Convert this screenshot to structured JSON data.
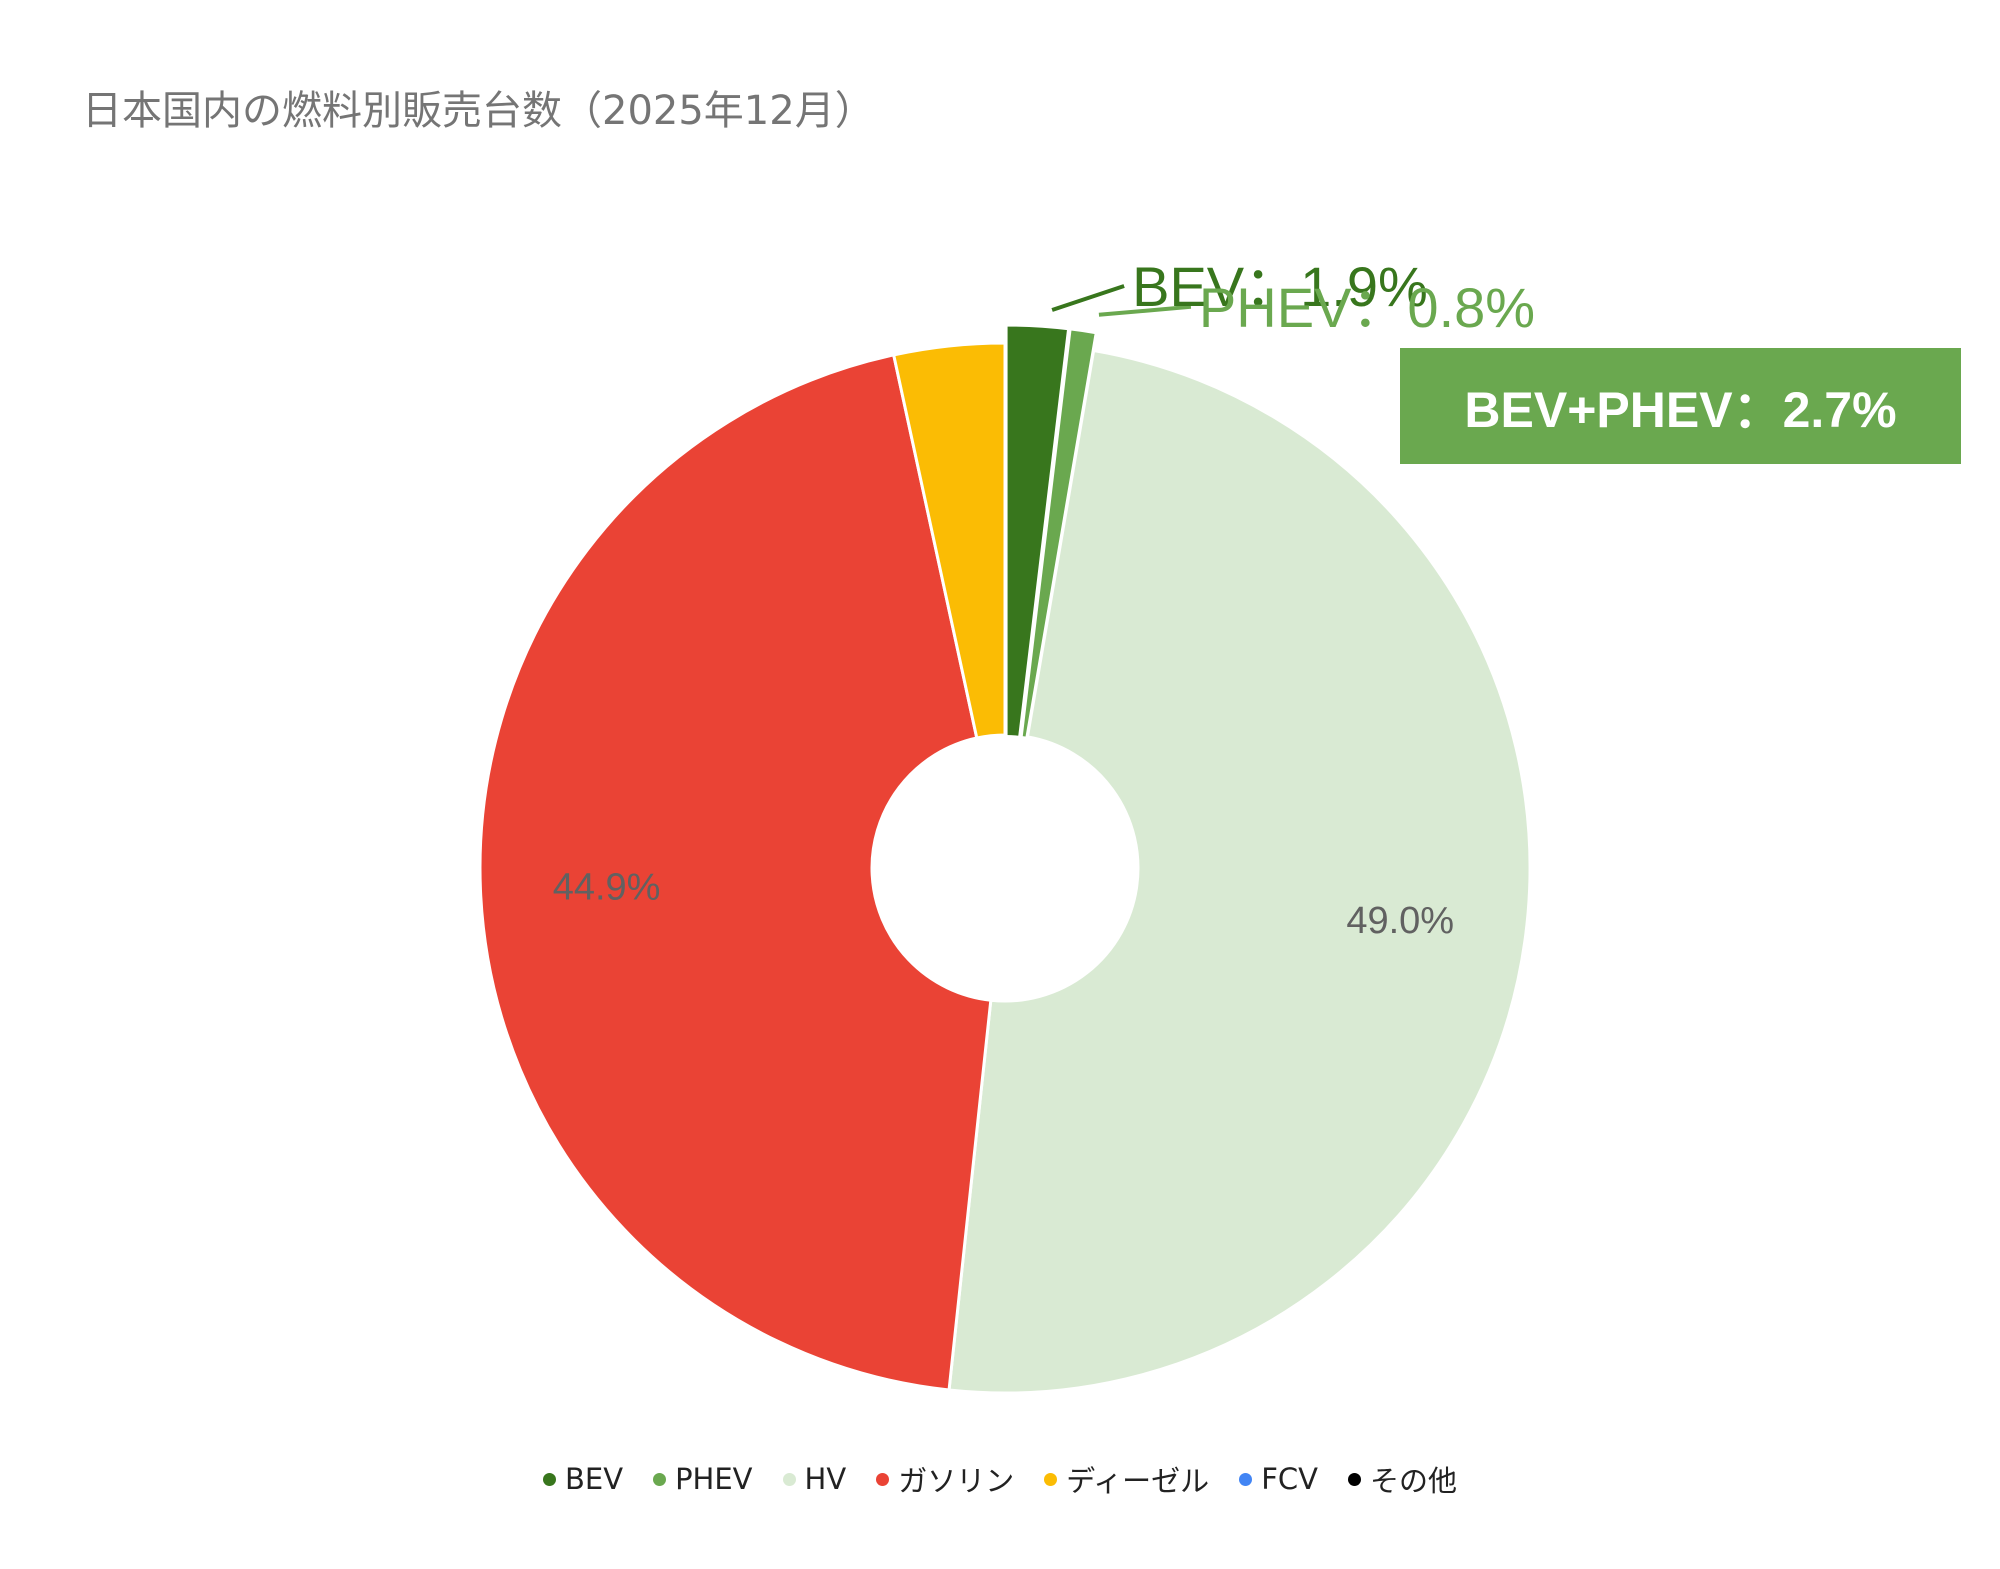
{
  "chart_data": {
    "type": "pie",
    "title": "日本国内の燃料別販売台数（2025年12月）",
    "donut": true,
    "slices": [
      {
        "name": "BEV",
        "value": 1.9,
        "label": "BEV：1.9%",
        "color": "#38761d",
        "exploded": true
      },
      {
        "name": "PHEV",
        "value": 0.8,
        "label": "PHEV：0.8%",
        "color": "#6aa84f",
        "exploded": true
      },
      {
        "name": "HV",
        "value": 49.0,
        "label": "49.0%",
        "color": "#d9ead3",
        "exploded": false
      },
      {
        "name": "ガソリン",
        "value": 44.9,
        "label": "44.9%",
        "color": "#ea4335",
        "exploded": false
      },
      {
        "name": "ディーゼル",
        "value": 3.4,
        "label": "",
        "color": "#fbbc04",
        "exploded": false
      },
      {
        "name": "FCV",
        "value": 0.0,
        "label": "",
        "color": "#4285f4",
        "exploded": false
      },
      {
        "name": "その他",
        "value": 0.0,
        "label": "",
        "color": "#000000",
        "exploded": false
      }
    ],
    "legend": [
      "BEV",
      "PHEV",
      "HV",
      "ガソリン",
      "ディーゼル",
      "FCV",
      "その他"
    ],
    "legend_position": "bottom",
    "annotation": {
      "text": "BEV+PHEV：2.7%",
      "color": "#6aa84f"
    }
  }
}
